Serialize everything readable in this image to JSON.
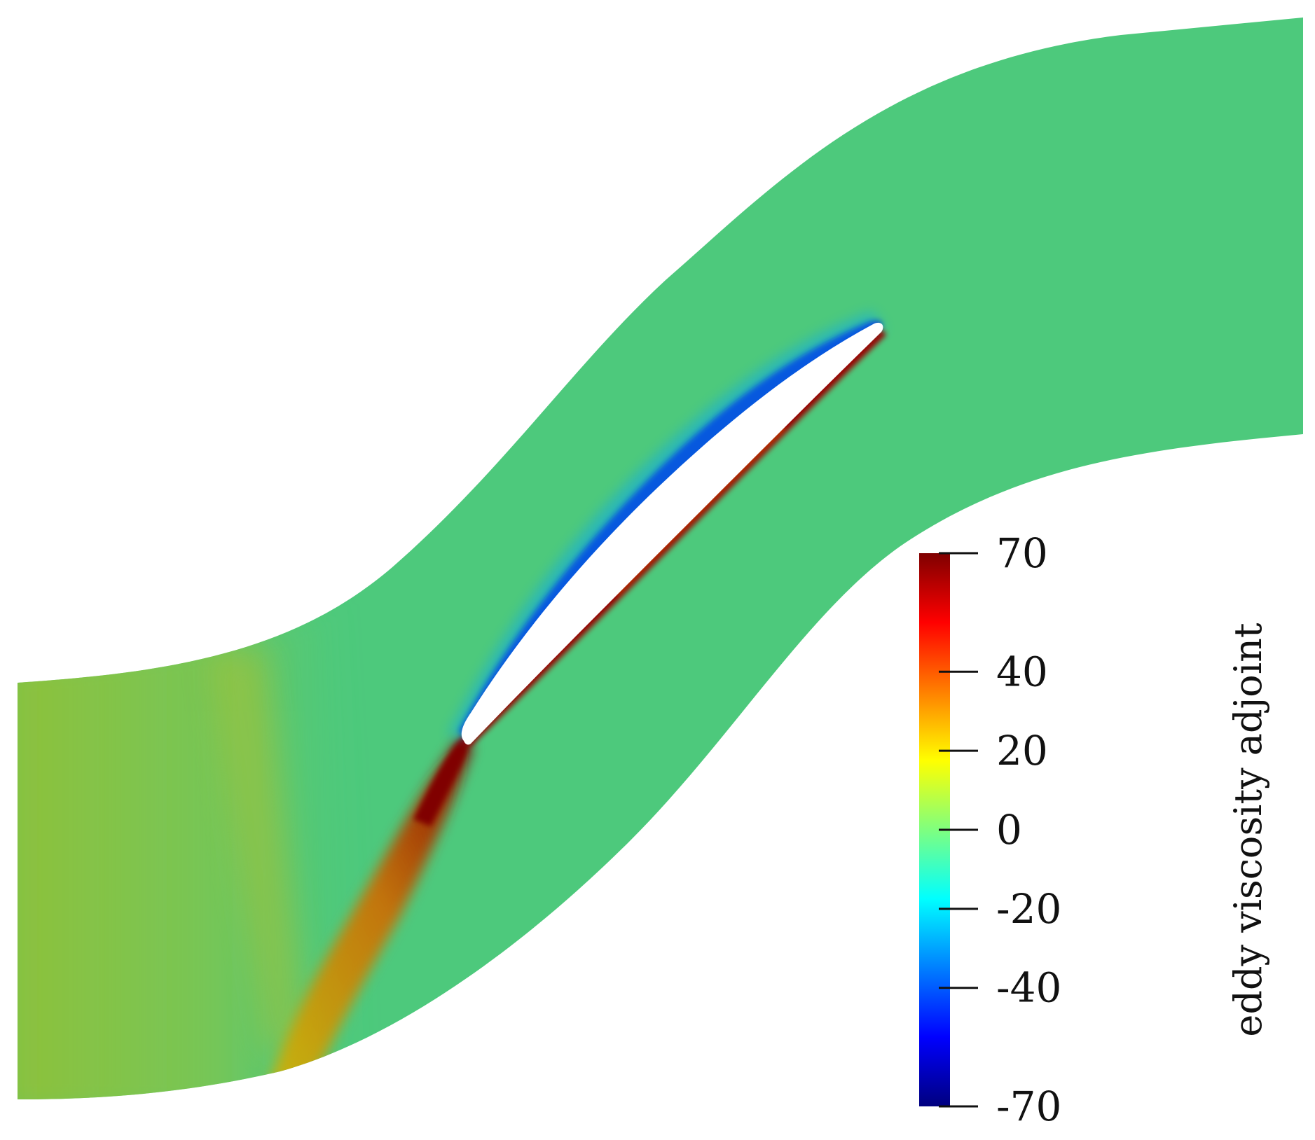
{
  "colorbar": {
    "title": "eddy viscosity adjoint",
    "range": [
      -70,
      70
    ],
    "ticks": [
      {
        "value": 70,
        "label": "70"
      },
      {
        "value": 40,
        "label": "40"
      },
      {
        "value": 20,
        "label": "20"
      },
      {
        "value": 0,
        "label": "0"
      },
      {
        "value": -20,
        "label": "-20"
      },
      {
        "value": -40,
        "label": "-40"
      },
      {
        "value": -70,
        "label": "-70"
      }
    ],
    "colormap": [
      "#00007f",
      "#0000ff",
      "#007fff",
      "#00ffff",
      "#7fff7f",
      "#ffff00",
      "#ff7f00",
      "#ff0000",
      "#7f0000"
    ]
  },
  "field": {
    "background_color": "#4dc97c",
    "wake_color": "#d4a800",
    "suction_side_color": "#0a1fc4",
    "pressure_side_color": "#9a0000"
  }
}
